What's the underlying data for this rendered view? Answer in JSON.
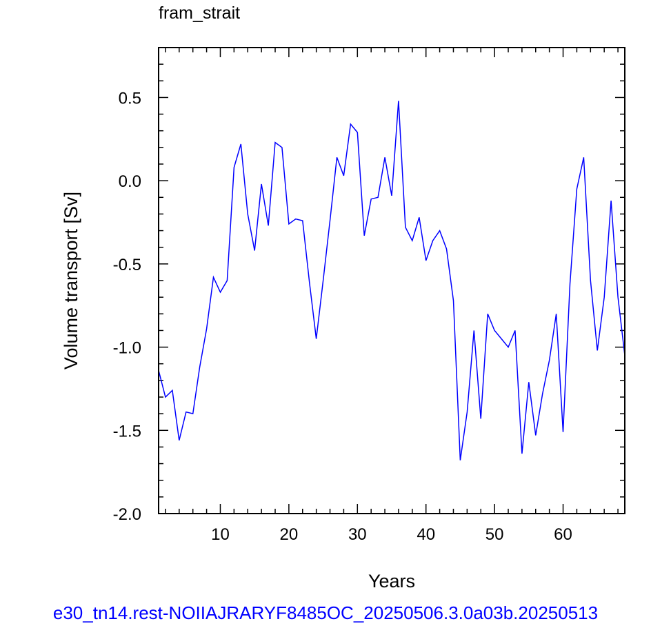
{
  "chart_data": {
    "type": "line",
    "title": "fram_strait",
    "xlabel": "Years",
    "ylabel": "Volume transport [Sv]",
    "footer": "e30_tn14.rest-NOIIAJRARYF8485OC_20250506.3.0a03b.20250513",
    "xlim": [
      1,
      69
    ],
    "ylim": [
      -2.0,
      0.8
    ],
    "x_ticks": [
      10,
      20,
      30,
      40,
      50,
      60
    ],
    "y_ticks": [
      -2.0,
      -1.5,
      -1.0,
      -0.5,
      0.0,
      0.5
    ],
    "x_tick_labels": [
      "10",
      "20",
      "30",
      "40",
      "50",
      "60"
    ],
    "y_tick_labels": [
      "-2.0",
      "-1.5",
      "-1.0",
      "-0.5",
      "0.0",
      "0.5"
    ],
    "x_minor_step": 2,
    "y_minor_step": 0.1,
    "line_color": "#0000ff",
    "series": [
      {
        "x": [
          1,
          2,
          3,
          4,
          5,
          6,
          7,
          8,
          9,
          10,
          11,
          12,
          13,
          14,
          15,
          16,
          17,
          18,
          19,
          20,
          21,
          22,
          23,
          24,
          25,
          26,
          27,
          28,
          29,
          30,
          31,
          32,
          33,
          34,
          35,
          36,
          37,
          38,
          39,
          40,
          41,
          42,
          43,
          44,
          45,
          46,
          47,
          48,
          49,
          50,
          51,
          52,
          53,
          54,
          55,
          56,
          57,
          58,
          59,
          60,
          61,
          62,
          63,
          64,
          65,
          66,
          67,
          68,
          69
        ],
        "values": [
          -1.14,
          -1.3,
          -1.26,
          -1.56,
          -1.39,
          -1.4,
          -1.12,
          -0.89,
          -0.58,
          -0.67,
          -0.6,
          0.08,
          0.22,
          -0.2,
          -0.42,
          -0.02,
          -0.27,
          0.23,
          0.2,
          -0.26,
          -0.23,
          -0.24,
          -0.61,
          -0.95,
          -0.6,
          -0.24,
          0.14,
          0.03,
          0.34,
          0.29,
          -0.33,
          -0.11,
          -0.1,
          0.14,
          -0.09,
          0.48,
          -0.28,
          -0.36,
          -0.22,
          -0.48,
          -0.36,
          -0.3,
          -0.41,
          -0.72,
          -1.68,
          -1.39,
          -0.9,
          -1.43,
          -0.8,
          -0.9,
          -0.95,
          -1.0,
          -0.9,
          -1.64,
          -1.21,
          -1.53,
          -1.28,
          -1.08,
          -0.8,
          -1.51,
          -0.62,
          -0.05,
          0.14,
          -0.6,
          -1.02,
          -0.7,
          -0.12,
          -0.7,
          -1.05
        ]
      }
    ]
  }
}
